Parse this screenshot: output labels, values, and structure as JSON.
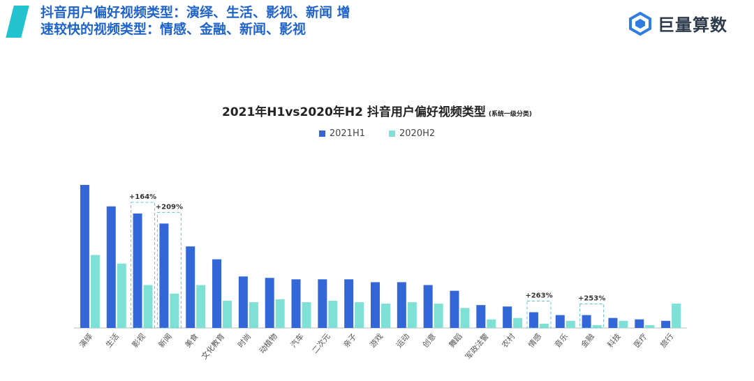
{
  "headline": "抖音用户偏好视频类型：演绎、生活、影视、新闻 增速较快的视频类型：情感、金融、新闻、影视",
  "brand": {
    "name": "巨量算数"
  },
  "colors": {
    "h1_2021": "#3366d6",
    "h2_2020": "#7fe0d6",
    "accent": "#22c2cf",
    "headline": "#1f63c9"
  },
  "chart_data": {
    "type": "bar",
    "title": "2021年H1vs2020年H2 抖音用户偏好视频类型",
    "subtitle": "(系统一级分类)",
    "legend_position": "top-center",
    "grid": false,
    "categories": [
      "演绎",
      "生活",
      "影视",
      "新闻",
      "美食",
      "文化教育",
      "时尚",
      "动植物",
      "汽车",
      "二次元",
      "亲子",
      "游戏",
      "运动",
      "创意",
      "舞蹈",
      "军政法警",
      "农村",
      "情感",
      "音乐",
      "金融",
      "科技",
      "医疗",
      "旅行"
    ],
    "series": [
      {
        "name": "2021H1",
        "values": [
          100,
          85,
          80,
          73,
          57,
          48,
          36,
          35,
          34,
          34,
          34,
          32,
          32,
          30,
          26,
          16,
          15,
          11,
          9,
          9,
          7,
          6,
          5
        ]
      },
      {
        "name": "2020H2",
        "values": [
          51,
          45,
          30,
          24,
          30,
          19,
          18,
          20,
          18,
          19,
          18,
          17,
          18,
          17,
          14,
          6,
          7,
          3,
          5,
          2,
          5,
          2,
          17
        ]
      }
    ],
    "ylim": [
      0,
      100
    ],
    "annotations": [
      {
        "category": "影视",
        "text": "+164%"
      },
      {
        "category": "新闻",
        "text": "+209%"
      },
      {
        "category": "情感",
        "text": "+263%"
      },
      {
        "category": "金融",
        "text": "+253%"
      }
    ]
  }
}
